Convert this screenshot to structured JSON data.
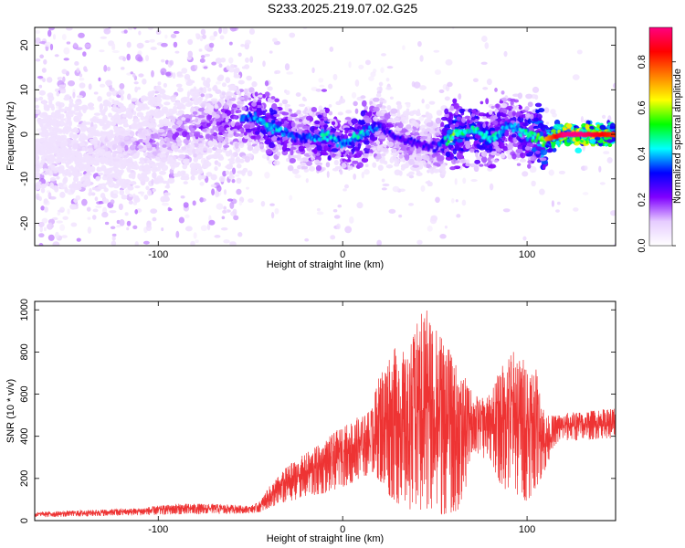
{
  "title": "S233.2025.219.07.02.G25",
  "chart_data": [
    {
      "type": "heatmap",
      "xlabel": "Height of straight line (km)",
      "ylabel": "Frequency (Hz)",
      "xlim": [
        -167,
        148
      ],
      "ylim": [
        -25,
        24
      ],
      "xticks": [
        -100,
        0,
        100
      ],
      "yticks": [
        -20,
        -10,
        0,
        10,
        20
      ],
      "grid": false,
      "colorbar": {
        "label": "Normalized spectral amplitude",
        "range": [
          0.0,
          0.95
        ],
        "ticks": [
          0.0,
          0.2,
          0.4,
          0.6,
          0.8
        ],
        "colormap": [
          "#ffffff",
          "#e6ccff",
          "#8000ff",
          "#0000ff",
          "#00ffff",
          "#00ff00",
          "#ffff00",
          "#ff8000",
          "#ff0000",
          "#ff0080"
        ]
      },
      "ridge": {
        "x": [
          -160,
          -140,
          -120,
          -100,
          -80,
          -60,
          -50,
          -40,
          -30,
          -20,
          -10,
          0,
          10,
          20,
          30,
          40,
          50,
          60,
          70,
          80,
          90,
          100,
          110,
          120,
          130,
          140,
          148
        ],
        "y": [
          -2,
          -3,
          -3,
          -1,
          1,
          3,
          4,
          2,
          0,
          -1,
          0,
          -2,
          0,
          2,
          -1,
          -2,
          -3,
          0,
          1,
          -1,
          2,
          0,
          -1,
          0,
          0,
          0,
          0
        ],
        "amplitude": [
          0.1,
          0.15,
          0.2,
          0.25,
          0.3,
          0.35,
          0.4,
          0.5,
          0.4,
          0.35,
          0.5,
          0.4,
          0.5,
          0.35,
          0.3,
          0.3,
          0.3,
          0.6,
          0.5,
          0.5,
          0.4,
          0.5,
          0.7,
          0.95,
          0.95,
          0.85,
          0.8
        ]
      }
    },
    {
      "type": "line",
      "xlabel": "Height of straight line (km)",
      "ylabel": "SNR (10 * v/v)",
      "xlim": [
        -167,
        148
      ],
      "ylim": [
        0,
        1040
      ],
      "xticks": [
        -100,
        0,
        100
      ],
      "yticks": [
        0,
        200,
        400,
        600,
        800,
        1000
      ],
      "color": "#ee3333",
      "grid": false,
      "envelope": {
        "x": [
          -167,
          -140,
          -110,
          -90,
          -70,
          -50,
          -45,
          -40,
          -30,
          -20,
          -10,
          0,
          10,
          15,
          20,
          25,
          30,
          35,
          40,
          45,
          50,
          55,
          60,
          65,
          70,
          75,
          80,
          85,
          90,
          95,
          100,
          105,
          110,
          115,
          120,
          130,
          140,
          148
        ],
        "low": [
          15,
          20,
          25,
          30,
          30,
          35,
          40,
          60,
          90,
          110,
          130,
          160,
          190,
          230,
          190,
          120,
          80,
          60,
          40,
          30,
          20,
          30,
          40,
          60,
          320,
          300,
          290,
          180,
          130,
          120,
          90,
          160,
          240,
          360,
          380,
          380,
          390,
          390
        ],
        "high": [
          40,
          50,
          60,
          80,
          80,
          70,
          90,
          160,
          260,
          320,
          380,
          450,
          500,
          530,
          700,
          800,
          840,
          780,
          940,
          1040,
          960,
          880,
          760,
          700,
          620,
          580,
          600,
          720,
          820,
          800,
          760,
          720,
          500,
          500,
          510,
          520,
          530,
          540
        ]
      }
    }
  ]
}
